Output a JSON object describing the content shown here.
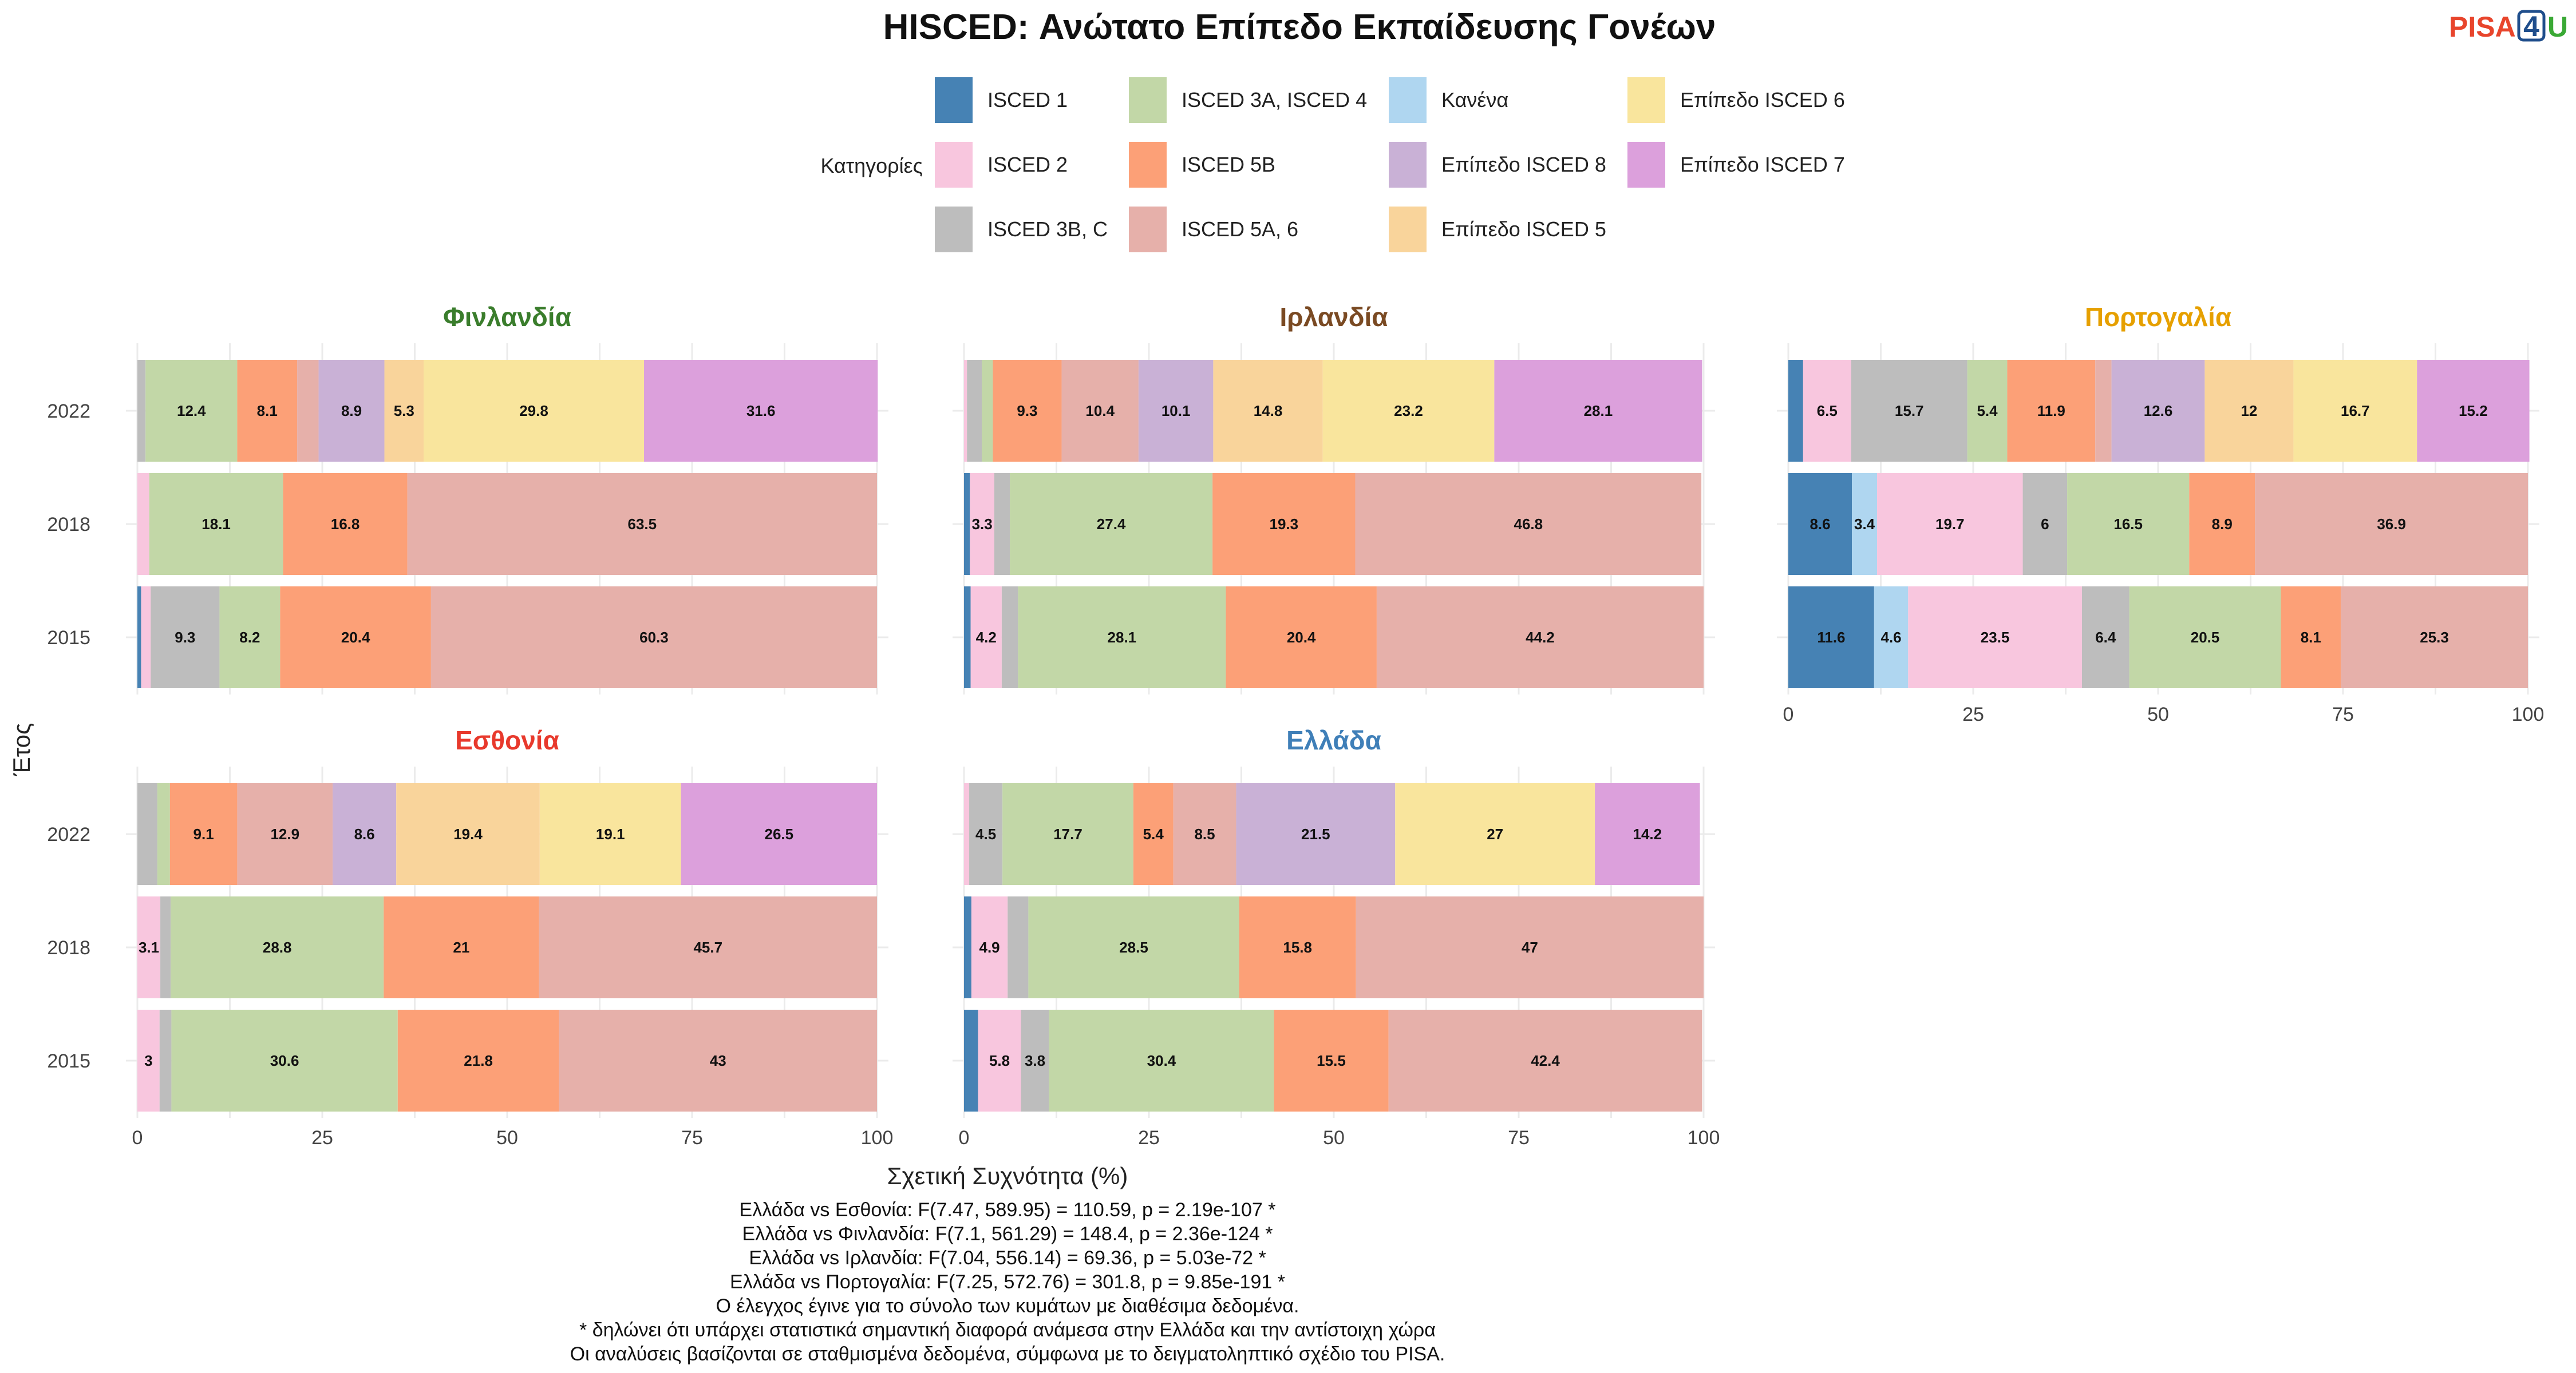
{
  "logo": {
    "left": "PISA",
    "digit": "4",
    "right": "U",
    "colors": {
      "left": "#e8452c",
      "digit": "#1f4e8c",
      "right": "#3aa935"
    }
  },
  "chart_data": {
    "type": "bar",
    "orientation": "horizontal-stacked",
    "title": "HISCED: Ανώτατο Επίπεδο Εκπαίδευσης Γονέων",
    "xlabel": "Σχετική Συχνότητα (%)",
    "ylabel": "Έτος",
    "xlim": [
      0,
      100
    ],
    "x_ticks": [
      "0",
      "25",
      "50",
      "75",
      "100"
    ],
    "grid": true,
    "legend": {
      "title": "Κατηγορίες",
      "placement": "top",
      "entries": [
        {
          "key": "isced1",
          "label": "ISCED 1",
          "color": "#4682b4"
        },
        {
          "key": "isced2",
          "label": "ISCED 2",
          "color": "#f8c6de"
        },
        {
          "key": "isced3bc",
          "label": "ISCED 3B, C",
          "color": "#bdbdbd"
        },
        {
          "key": "isced3a4",
          "label": "ISCED 3A, ISCED 4",
          "color": "#c2d7a7"
        },
        {
          "key": "isced5b",
          "label": "ISCED 5B",
          "color": "#fca077"
        },
        {
          "key": "isced5a6",
          "label": "ISCED 5A, 6",
          "color": "#e6b0aa"
        },
        {
          "key": "none",
          "label": "Κανένα",
          "color": "#afd6f0"
        },
        {
          "key": "lvl8",
          "label": "Επίπεδο ISCED 8",
          "color": "#c9b1d6"
        },
        {
          "key": "lvl5",
          "label": "Επίπεδο ISCED 5",
          "color": "#f9d49b"
        },
        {
          "key": "lvl6",
          "label": "Επίπεδο ISCED 6",
          "color": "#f9e59d"
        },
        {
          "key": "lvl7",
          "label": "Επίπεδο ISCED 7",
          "color": "#dca0dc"
        }
      ]
    },
    "stack_order": [
      "isced1",
      "none",
      "isced2",
      "isced3bc",
      "isced3a4",
      "isced5b",
      "isced5a6",
      "lvl8",
      "lvl5",
      "lvl6",
      "lvl7"
    ],
    "years": [
      "2022",
      "2018",
      "2015"
    ],
    "facets": [
      {
        "name": "Φινλανδία",
        "color": "#3a7d2c",
        "rows": {
          "2022": {
            "isced3bc": 1.1,
            "isced3a4": 12.4,
            "isced5b": 8.1,
            "isced5a6": 2.9,
            "lvl8": 8.9,
            "lvl5": 5.3,
            "lvl6": 29.8,
            "lvl7": 31.6
          },
          "2018": {
            "isced2": 1.6,
            "isced3a4": 18.1,
            "isced5b": 16.8,
            "isced5a6": 63.5
          },
          "2015": {
            "isced1": 0.5,
            "isced2": 1.3,
            "isced3bc": 9.3,
            "isced3a4": 8.2,
            "isced5b": 20.4,
            "isced5a6": 60.3
          }
        }
      },
      {
        "name": "Ιρλανδία",
        "color": "#7a4a23",
        "rows": {
          "2022": {
            "isced2": 0.4,
            "isced3bc": 2.0,
            "isced3a4": 1.5,
            "isced5b": 9.3,
            "isced5a6": 10.4,
            "lvl8": 10.1,
            "lvl5": 14.8,
            "lvl6": 23.2,
            "lvl7": 28.1
          },
          "2018": {
            "isced1": 0.8,
            "isced2": 3.3,
            "isced3bc": 2.1,
            "isced3a4": 27.4,
            "isced5b": 19.3,
            "isced5a6": 46.8
          },
          "2015": {
            "isced1": 0.9,
            "isced2": 4.2,
            "isced3bc": 2.2,
            "isced3a4": 28.1,
            "isced5b": 20.4,
            "isced5a6": 44.2
          }
        }
      },
      {
        "name": "Πορτογαλία",
        "color": "#e6a000",
        "rows": {
          "2022": {
            "isced1": 2.0,
            "isced2": 6.5,
            "isced3bc": 15.7,
            "isced3a4": 5.4,
            "isced5b": 11.9,
            "isced5a6": 2.2,
            "lvl8": 12.6,
            "lvl5": 12,
            "lvl6": 16.7,
            "lvl7": 15.2
          },
          "2018": {
            "isced1": 8.6,
            "isced2": 19.7,
            "isced3bc": 6,
            "isced3a4": 16.5,
            "isced5b": 8.9,
            "isced5a6": 36.9,
            "none": 3.4
          },
          "2015": {
            "isced1": 11.6,
            "isced2": 23.5,
            "isced3bc": 6.4,
            "isced3a4": 20.5,
            "isced5b": 8.1,
            "isced5a6": 25.3,
            "none": 4.6
          }
        }
      },
      {
        "name": "Εσθονία",
        "color": "#e8392c",
        "rows": {
          "2022": {
            "isced3bc": 2.7,
            "isced3a4": 1.7,
            "isced5b": 9.1,
            "isced5a6": 12.9,
            "lvl8": 8.6,
            "lvl5": 19.4,
            "lvl6": 19.1,
            "lvl7": 26.5
          },
          "2018": {
            "isced2": 3.1,
            "isced3bc": 1.4,
            "isced3a4": 28.8,
            "isced5b": 21,
            "isced5a6": 45.7
          },
          "2015": {
            "isced2": 3.0,
            "isced3bc": 1.6,
            "isced3a4": 30.6,
            "isced5b": 21.8,
            "isced5a6": 43
          }
        }
      },
      {
        "name": "Ελλάδα",
        "color": "#3f7fb8",
        "rows": {
          "2022": {
            "isced2": 0.7,
            "isced3bc": 4.5,
            "isced3a4": 17.7,
            "isced5b": 5.4,
            "isced5a6": 8.5,
            "lvl8": 21.5,
            "lvl6": 27,
            "lvl7": 14.2
          },
          "2018": {
            "isced1": 1.0,
            "isced2": 4.9,
            "isced3bc": 2.8,
            "isced3a4": 28.5,
            "isced5b": 15.8,
            "isced5a6": 47
          },
          "2015": {
            "isced1": 1.9,
            "isced2": 5.8,
            "isced3bc": 3.8,
            "isced3a4": 30.4,
            "isced5b": 15.5,
            "isced5a6": 42.4
          }
        }
      }
    ],
    "notes": [
      "Ελλάδα vs Εσθονία: F(7.47, 589.95) = 110.59, p = 2.19e-107 *",
      "Ελλάδα vs Φινλανδία: F(7.1, 561.29) = 148.4, p = 2.36e-124 *",
      "Ελλάδα vs Ιρλανδία: F(7.04, 556.14) = 69.36, p = 5.03e-72 *",
      "Ελλάδα vs Πορτογαλία: F(7.25, 572.76) = 301.8, p = 9.85e-191 *",
      "Ο έλεγχος έγινε για το σύνολο των κυμάτων με διαθέσιμα δεδομένα.",
      "* δηλώνει ότι υπάρχει στατιστικά σημαντική διαφορά ανάμεσα στην Ελλάδα και την αντίστοιχη χώρα",
      "Οι αναλύσεις βασίζονται σε σταθμισμένα δεδομένα, σύμφωνα με το δειγματοληπτικό σχέδιο του PISA."
    ]
  }
}
